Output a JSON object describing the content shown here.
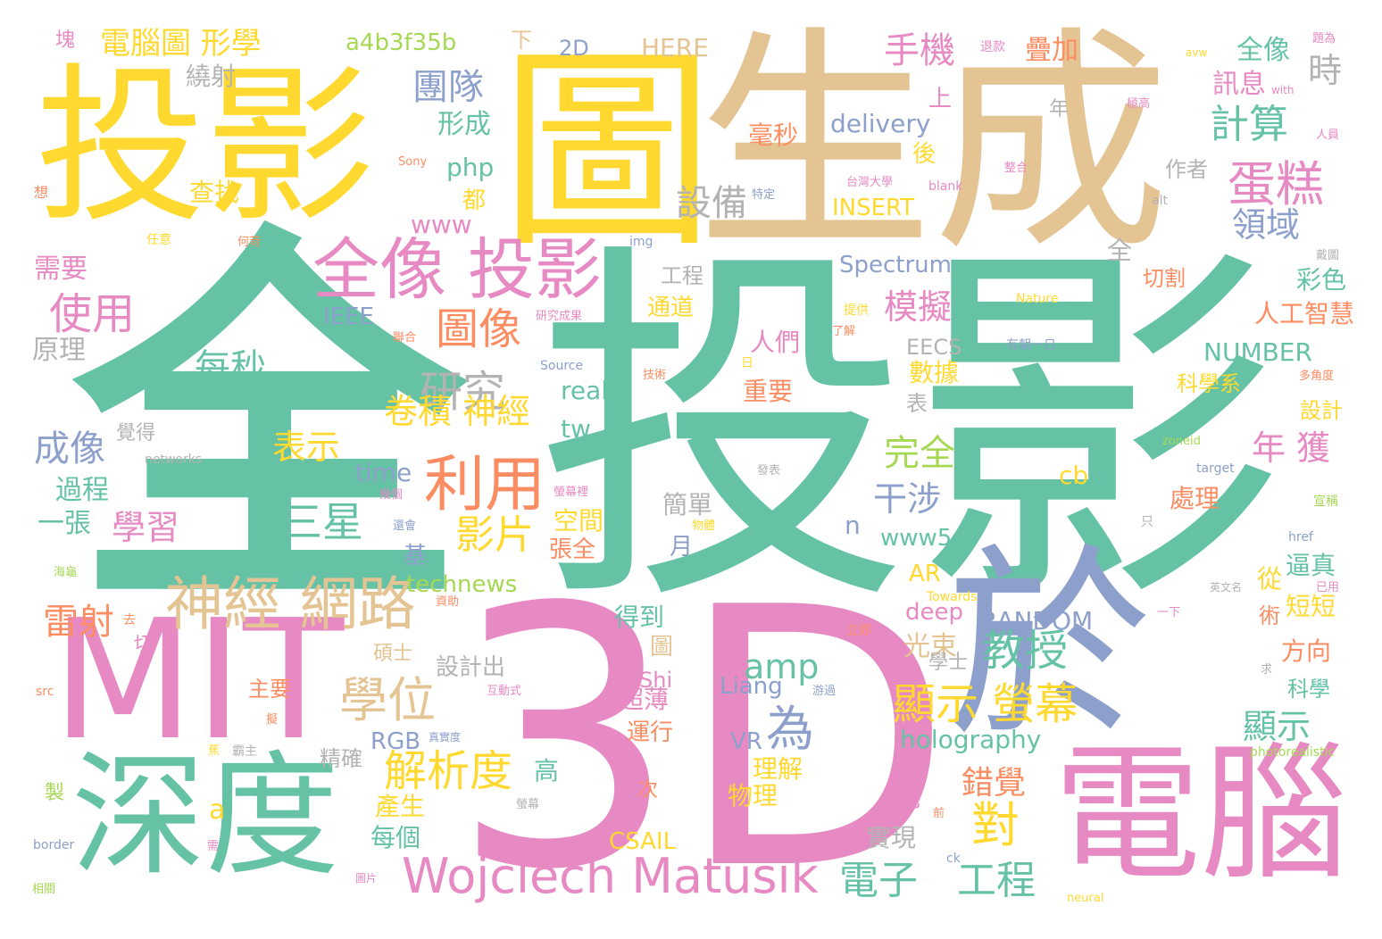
{
  "colors": {
    "green": "#66c2a5",
    "orange": "#fc8d62",
    "blue": "#8da0cb",
    "pink": "#e78ac3",
    "lime": "#a6d854",
    "yellow": "#ffd92f",
    "tan": "#e5c494",
    "gray": "#b3b3b3"
  },
  "words": [
    {
      "text": "全",
      "color": "green"
    },
    {
      "text": "投影",
      "color": "green"
    },
    {
      "text": "3D",
      "color": "pink"
    },
    {
      "text": "生成",
      "color": "tan"
    },
    {
      "text": "圖",
      "color": "yellow"
    },
    {
      "text": "投影",
      "color": "yellow"
    },
    {
      "text": "MIT",
      "color": "pink"
    },
    {
      "text": "深度",
      "color": "green"
    },
    {
      "text": "於",
      "color": "blue"
    },
    {
      "text": "電腦",
      "color": "pink"
    },
    {
      "text": "全像 投影",
      "color": "pink"
    },
    {
      "text": "神經 網路",
      "color": "tan"
    },
    {
      "text": "利用",
      "color": "orange"
    },
    {
      "text": "Wojciech Matusik",
      "color": "pink"
    },
    {
      "text": "研究",
      "color": "gray"
    },
    {
      "text": "圖像",
      "color": "orange"
    },
    {
      "text": "使用",
      "color": "pink"
    },
    {
      "text": "學位",
      "color": "tan"
    },
    {
      "text": "顯示 螢幕",
      "color": "yellow"
    },
    {
      "text": "教授",
      "color": "green"
    },
    {
      "text": "解析度",
      "color": "yellow"
    },
    {
      "text": "蛋糕",
      "color": "pink"
    },
    {
      "text": "計算",
      "color": "green"
    },
    {
      "text": "為",
      "color": "blue"
    },
    {
      "text": "團隊",
      "color": "blue"
    },
    {
      "text": "手機",
      "color": "pink"
    },
    {
      "text": "電子",
      "color": "green"
    },
    {
      "text": "工程",
      "color": "green"
    },
    {
      "text": "對",
      "color": "yellow"
    },
    {
      "text": "三星",
      "color": "green"
    },
    {
      "text": "影片",
      "color": "yellow"
    },
    {
      "text": "設備",
      "color": "gray"
    },
    {
      "text": "成像",
      "color": "blue"
    },
    {
      "text": "卷積 神經",
      "color": "yellow"
    },
    {
      "text": "雷射",
      "color": "orange"
    },
    {
      "text": "模擬",
      "color": "pink"
    },
    {
      "text": "電腦圖 形學",
      "color": "yellow"
    },
    {
      "text": "每秒",
      "color": "green"
    },
    {
      "text": "表示",
      "color": "yellow"
    },
    {
      "text": "完全",
      "color": "lime"
    },
    {
      "text": "干涉",
      "color": "blue"
    },
    {
      "text": "學習",
      "color": "pink"
    },
    {
      "text": "錯覺",
      "color": "orange"
    },
    {
      "text": "時",
      "color": "gray"
    },
    {
      "text": "領域",
      "color": "blue"
    },
    {
      "text": "年 獲",
      "color": "pink"
    },
    {
      "text": "顯示",
      "color": "green"
    },
    {
      "text": "amp",
      "color": "green"
    },
    {
      "text": "a4b3f35b",
      "color": "lime"
    },
    {
      "text": "holography",
      "color": "green"
    },
    {
      "text": "delivery",
      "color": "blue"
    },
    {
      "text": "Spectrum",
      "color": "blue"
    },
    {
      "text": "INSERT",
      "color": "yellow"
    },
    {
      "text": "RANDOM",
      "color": "blue"
    },
    {
      "text": "NUMBER",
      "color": "green"
    },
    {
      "text": "technews",
      "color": "lime"
    },
    {
      "text": "IEEE",
      "color": "blue"
    },
    {
      "text": "HERE",
      "color": "tan"
    },
    {
      "text": "全像",
      "color": "green"
    },
    {
      "text": "訊息",
      "color": "pink"
    },
    {
      "text": "人工智慧",
      "color": "orange"
    },
    {
      "text": "彩色",
      "color": "green"
    },
    {
      "text": "切割",
      "color": "orange"
    },
    {
      "text": "疊加",
      "color": "orange"
    },
    {
      "text": "需要",
      "color": "pink"
    },
    {
      "text": "原理",
      "color": "gray"
    },
    {
      "text": "過程",
      "color": "green"
    },
    {
      "text": "一張",
      "color": "green"
    },
    {
      "text": "查找",
      "color": "yellow"
    },
    {
      "text": "繞射",
      "color": "gray"
    },
    {
      "text": "形成",
      "color": "green"
    },
    {
      "text": "php",
      "color": "green"
    },
    {
      "text": "www",
      "color": "pink"
    },
    {
      "text": "real",
      "color": "green"
    },
    {
      "text": "tw",
      "color": "green"
    },
    {
      "text": "time",
      "color": "blue"
    },
    {
      "text": "cb",
      "color": "yellow"
    },
    {
      "text": "n",
      "color": "blue"
    },
    {
      "text": "www5",
      "color": "green"
    },
    {
      "text": "AR",
      "color": "yellow"
    },
    {
      "text": "deep",
      "color": "pink"
    },
    {
      "text": "光束",
      "color": "tan"
    },
    {
      "text": "Liang",
      "color": "blue"
    },
    {
      "text": "RGB",
      "color": "blue"
    },
    {
      "text": "VR",
      "color": "blue"
    },
    {
      "text": "CSAIL",
      "color": "yellow"
    },
    {
      "text": "a",
      "color": "yellow"
    },
    {
      "text": "產生",
      "color": "yellow"
    },
    {
      "text": "每個",
      "color": "green"
    },
    {
      "text": "實現",
      "color": "gray"
    },
    {
      "text": "幾",
      "color": "pink"
    },
    {
      "text": "毫秒",
      "color": "orange"
    },
    {
      "text": "人們",
      "color": "pink"
    },
    {
      "text": "重要",
      "color": "orange"
    },
    {
      "text": "數據",
      "color": "yellow"
    },
    {
      "text": "表",
      "color": "gray"
    },
    {
      "text": "簡單",
      "color": "gray"
    },
    {
      "text": "月",
      "color": "blue"
    },
    {
      "text": "空間",
      "color": "yellow"
    },
    {
      "text": "張全",
      "color": "orange"
    },
    {
      "text": "基",
      "color": "blue"
    },
    {
      "text": "得到",
      "color": "green"
    },
    {
      "text": "圖",
      "color": "tan"
    },
    {
      "text": "設計出",
      "color": "gray"
    },
    {
      "text": "超薄",
      "color": "pink"
    },
    {
      "text": "運行",
      "color": "orange"
    },
    {
      "text": "理解",
      "color": "yellow"
    },
    {
      "text": "物理",
      "color": "yellow"
    },
    {
      "text": "高",
      "color": "green"
    },
    {
      "text": "次",
      "color": "orange"
    },
    {
      "text": "精確",
      "color": "gray"
    },
    {
      "text": "碩士",
      "color": "tan"
    },
    {
      "text": "學士",
      "color": "gray"
    },
    {
      "text": "主要",
      "color": "orange"
    },
    {
      "text": "Shi",
      "color": "pink"
    },
    {
      "text": "處理",
      "color": "orange"
    },
    {
      "text": "科學系",
      "color": "yellow"
    },
    {
      "text": "設計",
      "color": "yellow"
    },
    {
      "text": "逼真",
      "color": "green"
    },
    {
      "text": "短短",
      "color": "yellow"
    },
    {
      "text": "從",
      "color": "yellow"
    },
    {
      "text": "術",
      "color": "orange"
    },
    {
      "text": "方向",
      "color": "orange"
    },
    {
      "text": "科學",
      "color": "green"
    },
    {
      "text": "EECS",
      "color": "gray"
    },
    {
      "text": "通道",
      "color": "yellow"
    },
    {
      "text": "工程",
      "color": "gray"
    },
    {
      "text": "全",
      "color": "gray"
    },
    {
      "text": "上",
      "color": "pink"
    },
    {
      "text": "後",
      "color": "yellow"
    },
    {
      "text": "都",
      "color": "yellow"
    },
    {
      "text": "作者",
      "color": "gray"
    },
    {
      "text": "年",
      "color": "gray"
    },
    {
      "text": "2D",
      "color": "blue"
    },
    {
      "text": "下",
      "color": "tan"
    },
    {
      "text": "塊",
      "color": "pink"
    },
    {
      "text": "覺得",
      "color": "gray"
    },
    {
      "text": "切",
      "color": "pink"
    },
    {
      "text": "去",
      "color": "orange"
    },
    {
      "text": "src",
      "color": "orange"
    },
    {
      "text": "製",
      "color": "lime"
    },
    {
      "text": "border",
      "color": "blue"
    },
    {
      "text": "相關",
      "color": "lime"
    },
    {
      "text": "海龜",
      "color": "lime"
    },
    {
      "text": "想",
      "color": "orange"
    },
    {
      "text": "任意",
      "color": "yellow"
    },
    {
      "text": "何苛",
      "color": "orange"
    },
    {
      "text": "Sony",
      "color": "orange"
    },
    {
      "text": "networks",
      "color": "gray"
    },
    {
      "text": "幾個",
      "color": "pink"
    },
    {
      "text": "還會",
      "color": "blue"
    },
    {
      "text": "資助",
      "color": "orange"
    },
    {
      "text": "互動式",
      "color": "pink"
    },
    {
      "text": "蕉",
      "color": "yellow"
    },
    {
      "text": "霸主",
      "color": "gray"
    },
    {
      "text": "擬",
      "color": "orange"
    },
    {
      "text": "螢幕",
      "color": "gray"
    },
    {
      "text": "圖片",
      "color": "pink"
    },
    {
      "text": "需",
      "color": "pink"
    },
    {
      "text": "發表",
      "color": "gray"
    },
    {
      "text": "螢幕裡",
      "color": "pink"
    },
    {
      "text": "物體",
      "color": "yellow"
    },
    {
      "text": "真實度",
      "color": "blue"
    },
    {
      "text": "游過",
      "color": "blue"
    },
    {
      "text": "立即",
      "color": "orange"
    },
    {
      "text": "聯合",
      "color": "orange"
    },
    {
      "text": "研究成果",
      "color": "pink"
    },
    {
      "text": "Source",
      "color": "blue"
    },
    {
      "text": "技術",
      "color": "orange"
    },
    {
      "text": "提供",
      "color": "yellow"
    },
    {
      "text": "了解",
      "color": "orange"
    },
    {
      "text": "日",
      "color": "yellow"
    },
    {
      "text": "有朝一日",
      "color": "blue"
    },
    {
      "text": "Nature",
      "color": "yellow"
    },
    {
      "text": "zoneid",
      "color": "lime"
    },
    {
      "text": "Towards",
      "color": "yellow"
    },
    {
      "text": "ck",
      "color": "blue"
    },
    {
      "text": "前",
      "color": "orange"
    },
    {
      "text": "neural",
      "color": "yellow"
    },
    {
      "text": "photorealistic",
      "color": "lime"
    },
    {
      "text": "一下",
      "color": "pink"
    },
    {
      "text": "英文名",
      "color": "gray"
    },
    {
      "text": "已用",
      "color": "pink"
    },
    {
      "text": "href",
      "color": "blue"
    },
    {
      "text": "宣稱",
      "color": "lime"
    },
    {
      "text": "target",
      "color": "blue"
    },
    {
      "text": "多角度",
      "color": "orange"
    },
    {
      "text": "戴圖",
      "color": "gray"
    },
    {
      "text": "只",
      "color": "gray"
    },
    {
      "text": "求",
      "color": "gray"
    },
    {
      "text": "台灣大學",
      "color": "pink"
    },
    {
      "text": "blank",
      "color": "pink"
    },
    {
      "text": "alt",
      "color": "gray"
    },
    {
      "text": "img",
      "color": "blue"
    },
    {
      "text": "特定",
      "color": "blue"
    },
    {
      "text": "整合",
      "color": "pink"
    },
    {
      "text": "人員",
      "color": "pink"
    },
    {
      "text": "極高",
      "color": "pink"
    },
    {
      "text": "with",
      "color": "pink"
    },
    {
      "text": "avw",
      "color": "yellow"
    },
    {
      "text": "題為",
      "color": "pink"
    },
    {
      "text": "退款",
      "color": "pink"
    }
  ]
}
